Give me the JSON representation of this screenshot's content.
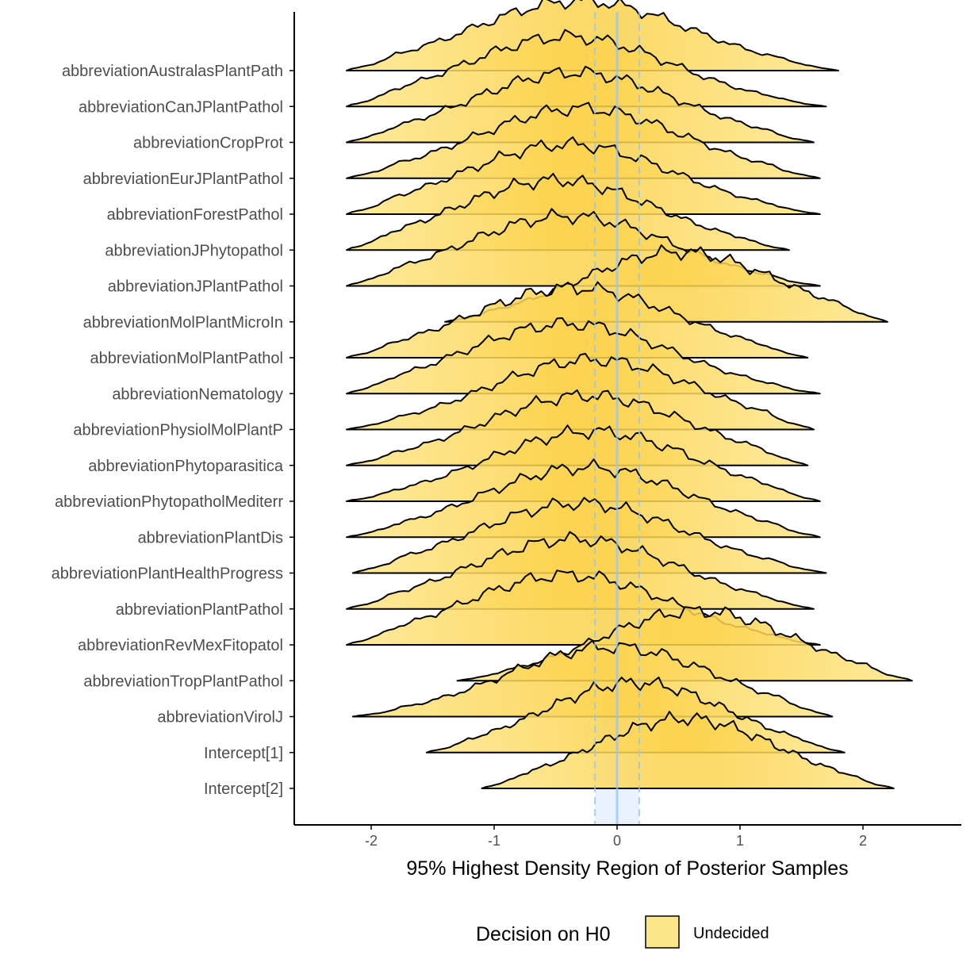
{
  "chart_data": {
    "type": "ridgeline",
    "xlabel": "95% Highest Density Region of Posterior Samples",
    "ylabel": "",
    "xlim": [
      -2.6,
      2.8
    ],
    "xticks": [
      -2,
      -1,
      0,
      1,
      2
    ],
    "xtick_labels": [
      "-2",
      "-1",
      "0",
      "1",
      "2"
    ],
    "rope": [
      -0.18,
      0.18
    ],
    "reference_line": 0,
    "colors": {
      "fill": "#fde68a",
      "fill_mid": "#fcd34d",
      "outline": "#000000",
      "rope_fill": "#dbeafe",
      "rope_line": "#93c5fd",
      "axis": "#000000"
    },
    "legend": {
      "title": "Decision on H0",
      "position": "bottom",
      "entries": [
        {
          "label": "Undecided",
          "color": "#fde68a"
        }
      ]
    },
    "grid": false,
    "series": [
      {
        "name": "abbreviationAustralasPlantPath",
        "min": -2.2,
        "max": 1.8,
        "mode": -0.3,
        "sd": 0.88
      },
      {
        "name": "abbreviationCanJPlantPathol",
        "min": -2.2,
        "max": 1.7,
        "mode": -0.4,
        "sd": 0.85
      },
      {
        "name": "abbreviationCropProt",
        "min": -2.2,
        "max": 1.6,
        "mode": -0.35,
        "sd": 0.85
      },
      {
        "name": "abbreviationEurJPlantPathol",
        "min": -2.2,
        "max": 1.65,
        "mode": -0.3,
        "sd": 0.85
      },
      {
        "name": "abbreviationForestPathol",
        "min": -2.2,
        "max": 1.65,
        "mode": -0.4,
        "sd": 0.85
      },
      {
        "name": "abbreviationJPhytopathol",
        "min": -2.2,
        "max": 1.4,
        "mode": -0.5,
        "sd": 0.82
      },
      {
        "name": "abbreviationJPlantPathol",
        "min": -2.2,
        "max": 1.65,
        "mode": -0.4,
        "sd": 0.85
      },
      {
        "name": "abbreviationMolPlantMicroIn",
        "min": -1.4,
        "max": 2.2,
        "mode": 0.5,
        "sd": 0.8
      },
      {
        "name": "abbreviationMolPlantPathol",
        "min": -2.2,
        "max": 1.55,
        "mode": -0.35,
        "sd": 0.85
      },
      {
        "name": "abbreviationNematology",
        "min": -2.2,
        "max": 1.65,
        "mode": -0.4,
        "sd": 0.85
      },
      {
        "name": "abbreviationPhysiolMolPlantP",
        "min": -2.2,
        "max": 1.6,
        "mode": -0.2,
        "sd": 0.85
      },
      {
        "name": "abbreviationPhytoparasitica",
        "min": -2.2,
        "max": 1.55,
        "mode": -0.25,
        "sd": 0.85
      },
      {
        "name": "abbreviationPhytopatholMediterr",
        "min": -2.2,
        "max": 1.65,
        "mode": -0.2,
        "sd": 0.85
      },
      {
        "name": "abbreviationPlantDis",
        "min": -2.2,
        "max": 1.65,
        "mode": -0.25,
        "sd": 0.85
      },
      {
        "name": "abbreviationPlantHealthProgress",
        "min": -2.15,
        "max": 1.7,
        "mode": -0.3,
        "sd": 0.85
      },
      {
        "name": "abbreviationPlantPathol",
        "min": -2.2,
        "max": 1.6,
        "mode": -0.35,
        "sd": 0.85
      },
      {
        "name": "abbreviationRevMexFitopatol",
        "min": -2.2,
        "max": 1.65,
        "mode": -0.4,
        "sd": 0.85
      },
      {
        "name": "abbreviationTropPlantPathol",
        "min": -1.3,
        "max": 2.4,
        "mode": 0.65,
        "sd": 0.8
      },
      {
        "name": "abbreviationVirolJ",
        "min": -2.15,
        "max": 1.75,
        "mode": -0.05,
        "sd": 0.85
      },
      {
        "name": "Intercept[1]",
        "min": -1.55,
        "max": 1.85,
        "mode": 0.15,
        "sd": 0.75
      },
      {
        "name": "Intercept[2]",
        "min": -1.1,
        "max": 2.25,
        "mode": 0.55,
        "sd": 0.75
      }
    ]
  }
}
